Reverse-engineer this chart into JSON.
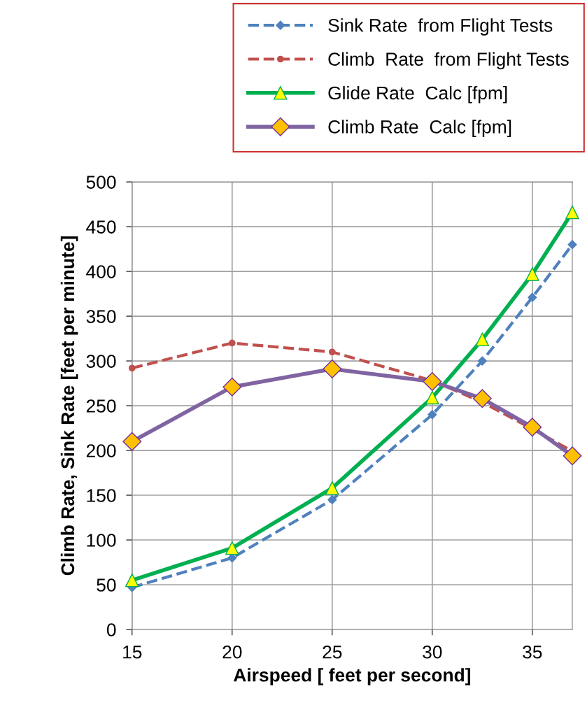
{
  "chart_data": {
    "type": "line",
    "xlabel": "Airspeed [ feet per second]",
    "ylabel": "Climb Rate, Sink Rate [feet per minute]",
    "x": [
      15,
      20,
      25,
      30,
      32.5,
      35,
      37
    ],
    "series": [
      {
        "name": "Sink Rate  from Flight Tests",
        "color": "#4f81bd",
        "values": [
          47,
          80,
          145,
          240,
          300,
          371,
          430
        ],
        "marker": "diamond",
        "line_style": "dashed"
      },
      {
        "name": "Climb  Rate  from Flight Tests",
        "color": "#c0504d",
        "values": [
          292,
          320,
          310,
          278,
          254,
          224,
          199
        ],
        "marker": "circle",
        "line_style": "dashed"
      },
      {
        "name": "Glide Rate  Calc [fpm]",
        "color": "#00b050",
        "values": [
          55,
          91,
          158,
          259,
          324,
          397,
          466
        ],
        "marker": "triangle",
        "line_style": "solid"
      },
      {
        "name": "Climb Rate  Calc [fpm]",
        "color": "#8064a2",
        "values": [
          210,
          271,
          291,
          277,
          258,
          226,
          194
        ],
        "marker": "diamond",
        "line_style": "solid"
      }
    ],
    "xlim": [
      15,
      37
    ],
    "xticks": [
      15,
      20,
      25,
      30,
      35
    ],
    "ylim": [
      0,
      500
    ],
    "yticks": [
      0,
      50,
      100,
      150,
      200,
      250,
      300,
      350,
      400,
      450,
      500
    ],
    "grid": true,
    "legend": "top"
  }
}
